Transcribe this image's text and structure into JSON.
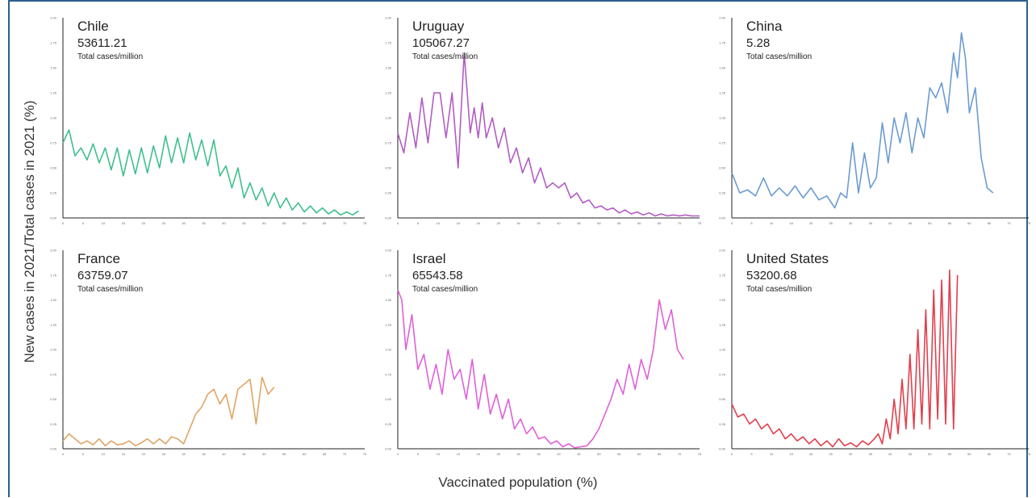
{
  "ylabel": "New cases in 2021/Total cases in 2021 (%)",
  "xlabel": "Vaccinated population (%)",
  "chart_data": [
    {
      "type": "line",
      "title": "Chile",
      "value": "53611.21",
      "unit": "Total cases/million",
      "color": "#3fbf8c",
      "xlim": [
        0,
        75
      ],
      "ylim": [
        0,
        2.0
      ],
      "yticks": [
        "0.00",
        "0.25",
        "0.50",
        "0.75",
        "1.00",
        "1.25",
        "1.50",
        "1.75",
        "2.00"
      ],
      "xticks": [
        "0",
        "5",
        "10",
        "15",
        "20",
        "25",
        "30",
        "35",
        "40",
        "45",
        "50",
        "55",
        "60",
        "65",
        "70",
        "75"
      ],
      "x": [
        0,
        1.5,
        3,
        4.5,
        6,
        7.5,
        9,
        10.5,
        12,
        13.5,
        15,
        16.5,
        18,
        19.5,
        21,
        22.5,
        24,
        25.5,
        27,
        28.5,
        30,
        31.5,
        33,
        34.5,
        36,
        37.5,
        39,
        40.5,
        42,
        43.5,
        45,
        46.5,
        48,
        49.5,
        51,
        52.5,
        54,
        55.5,
        57,
        58.5,
        60,
        61.5,
        63,
        64.5,
        66,
        67.5,
        69,
        70.5,
        72,
        73.5
      ],
      "y": [
        0.75,
        0.88,
        0.62,
        0.7,
        0.58,
        0.74,
        0.55,
        0.7,
        0.48,
        0.7,
        0.42,
        0.68,
        0.44,
        0.7,
        0.45,
        0.72,
        0.5,
        0.82,
        0.55,
        0.8,
        0.55,
        0.85,
        0.58,
        0.78,
        0.52,
        0.78,
        0.42,
        0.52,
        0.3,
        0.5,
        0.2,
        0.35,
        0.18,
        0.3,
        0.12,
        0.25,
        0.1,
        0.2,
        0.08,
        0.15,
        0.06,
        0.12,
        0.05,
        0.1,
        0.04,
        0.08,
        0.03,
        0.06,
        0.03,
        0.07
      ]
    },
    {
      "type": "line",
      "title": "Uruguay",
      "value": "105067.27",
      "unit": "Total cases/million",
      "color": "#b25cc4",
      "xlim": [
        0,
        75
      ],
      "ylim": [
        0,
        2.0
      ],
      "yticks": [
        "0.00",
        "0.25",
        "0.50",
        "0.75",
        "1.00",
        "1.25",
        "1.50",
        "1.75",
        "2.00"
      ],
      "xticks": [
        "0",
        "5",
        "10",
        "15",
        "20",
        "25",
        "30",
        "35",
        "40",
        "45",
        "50",
        "55",
        "60",
        "65",
        "70",
        "75"
      ],
      "x": [
        0,
        1.5,
        3,
        4.5,
        6,
        7.5,
        9,
        10.5,
        12,
        13.5,
        15,
        16.5,
        18,
        19,
        20,
        21,
        22,
        23.5,
        25,
        26.5,
        28,
        29.5,
        31,
        32.5,
        34,
        35.5,
        37,
        38.5,
        40,
        41.5,
        43,
        44.5,
        46,
        47.5,
        49,
        50.5,
        52,
        53.5,
        55,
        56.5,
        58,
        59.5,
        61,
        62.5,
        64,
        65.5,
        67,
        68.5,
        70,
        71.5,
        73,
        75
      ],
      "y": [
        0.85,
        0.65,
        1.05,
        0.7,
        1.2,
        0.75,
        1.25,
        1.25,
        0.8,
        1.25,
        0.5,
        1.65,
        0.85,
        1.1,
        0.8,
        1.15,
        0.8,
        1.0,
        0.7,
        0.9,
        0.55,
        0.7,
        0.45,
        0.6,
        0.35,
        0.5,
        0.3,
        0.35,
        0.3,
        0.35,
        0.2,
        0.25,
        0.15,
        0.18,
        0.1,
        0.12,
        0.08,
        0.1,
        0.05,
        0.08,
        0.04,
        0.06,
        0.03,
        0.05,
        0.02,
        0.04,
        0.02,
        0.03,
        0.02,
        0.03,
        0.02,
        0.02
      ]
    },
    {
      "type": "line",
      "title": "China",
      "value": "5.28",
      "unit": "Total cases/million",
      "color": "#6b9bd2",
      "xlim": [
        0,
        75
      ],
      "ylim": [
        0,
        2.0
      ],
      "yticks": [
        "0.00",
        "0.25",
        "0.50",
        "0.75",
        "1.00",
        "1.25",
        "1.50",
        "1.75",
        "2.00"
      ],
      "xticks": [
        "0",
        "5",
        "10",
        "15",
        "20",
        "25",
        "30",
        "35",
        "40",
        "45",
        "50",
        "55",
        "60",
        "65",
        "70",
        "75"
      ],
      "x": [
        0,
        2,
        4,
        6,
        8,
        10,
        12,
        14,
        16,
        18,
        20,
        22,
        24,
        26,
        27.5,
        29,
        30.5,
        32,
        33.5,
        35,
        36.5,
        38,
        39.5,
        41,
        42.5,
        44,
        45.5,
        47,
        48.5,
        50,
        51.5,
        53,
        54.5,
        56,
        57,
        58,
        59,
        60,
        61.5,
        63,
        64.5,
        66
      ],
      "y": [
        0.45,
        0.25,
        0.28,
        0.22,
        0.4,
        0.22,
        0.3,
        0.22,
        0.32,
        0.2,
        0.3,
        0.18,
        0.22,
        0.1,
        0.25,
        0.2,
        0.75,
        0.25,
        0.65,
        0.3,
        0.4,
        0.95,
        0.55,
        1.0,
        0.75,
        1.05,
        0.65,
        1.0,
        0.8,
        1.3,
        1.2,
        1.35,
        1.05,
        1.65,
        1.4,
        1.85,
        1.6,
        1.05,
        1.3,
        0.6,
        0.3,
        0.25
      ]
    },
    {
      "type": "line",
      "title": "France",
      "value": "63759.07",
      "unit": "Total cases/million",
      "color": "#e0a565",
      "xlim": [
        0,
        75
      ],
      "ylim": [
        0,
        2.0
      ],
      "yticks": [
        "0.00",
        "0.25",
        "0.50",
        "0.75",
        "1.00",
        "1.25",
        "1.50",
        "1.75",
        "2.00"
      ],
      "xticks": [
        "0",
        "5",
        "10",
        "15",
        "20",
        "25",
        "30",
        "35",
        "40",
        "45",
        "50",
        "55",
        "60",
        "65",
        "70",
        "75"
      ],
      "x": [
        0,
        1.5,
        3,
        4.5,
        6,
        7.5,
        9,
        10.5,
        12,
        13.5,
        15,
        16.5,
        18,
        19.5,
        21,
        22.5,
        24,
        25.5,
        27,
        28.5,
        30,
        31.5,
        33,
        34.5,
        36,
        37.5,
        39,
        40.5,
        42,
        43.5,
        45,
        46.5,
        48,
        49.5,
        51,
        52.5
      ],
      "y": [
        0.08,
        0.15,
        0.1,
        0.05,
        0.08,
        0.04,
        0.1,
        0.03,
        0.08,
        0.04,
        0.05,
        0.08,
        0.03,
        0.06,
        0.1,
        0.05,
        0.1,
        0.05,
        0.12,
        0.1,
        0.05,
        0.2,
        0.35,
        0.42,
        0.55,
        0.6,
        0.45,
        0.55,
        0.3,
        0.6,
        0.65,
        0.7,
        0.25,
        0.72,
        0.55,
        0.62
      ]
    },
    {
      "type": "line",
      "title": "Israel",
      "value": "65543.58",
      "unit": "Total cases/million",
      "color": "#e060d8",
      "xlim": [
        0,
        75
      ],
      "ylim": [
        0,
        2.0
      ],
      "yticks": [
        "0.00",
        "0.25",
        "0.50",
        "0.75",
        "1.00",
        "1.25",
        "1.50",
        "1.75",
        "2.00"
      ],
      "xticks": [
        "0",
        "5",
        "10",
        "15",
        "20",
        "25",
        "30",
        "35",
        "40",
        "45",
        "50",
        "55",
        "60",
        "65",
        "70",
        "75"
      ],
      "x": [
        0,
        1,
        2,
        3.5,
        5,
        6.5,
        8,
        9.5,
        11,
        12.5,
        14,
        15.5,
        17,
        18.5,
        20,
        21.5,
        23,
        24.5,
        26,
        27.5,
        29,
        30.5,
        32,
        33.5,
        35,
        36.5,
        38,
        39.5,
        41,
        42.5,
        44,
        45.5,
        47,
        48.5,
        50,
        51.5,
        53,
        54.5,
        56,
        57.5,
        59,
        60.5,
        62,
        63.5,
        65,
        66.5,
        68,
        69.5,
        71
      ],
      "y": [
        1.6,
        1.5,
        1.0,
        1.35,
        0.8,
        0.95,
        0.6,
        0.85,
        0.55,
        1.0,
        0.7,
        0.8,
        0.5,
        0.9,
        0.4,
        0.75,
        0.35,
        0.55,
        0.3,
        0.5,
        0.2,
        0.3,
        0.15,
        0.22,
        0.1,
        0.12,
        0.05,
        0.08,
        0.02,
        0.05,
        0.01,
        0.02,
        0.03,
        0.1,
        0.2,
        0.35,
        0.5,
        0.7,
        0.55,
        0.85,
        0.6,
        0.9,
        0.7,
        1.0,
        1.5,
        1.2,
        1.4,
        1.0,
        0.9
      ]
    },
    {
      "type": "line",
      "title": "United States",
      "value": "53200.68",
      "unit": "Total cases/million",
      "color": "#e0404d",
      "xlim": [
        0,
        75
      ],
      "ylim": [
        0,
        2.0
      ],
      "yticks": [
        "0.00",
        "0.25",
        "0.50",
        "0.75",
        "1.00",
        "1.25",
        "1.50",
        "1.75",
        "2.00"
      ],
      "xticks": [
        "0",
        "5",
        "10",
        "15",
        "20",
        "25",
        "30",
        "35",
        "40",
        "45",
        "50",
        "55",
        "60",
        "65",
        "70",
        "75"
      ],
      "x": [
        0,
        1.5,
        3,
        4.5,
        6,
        7.5,
        9,
        10.5,
        12,
        13.5,
        15,
        16.5,
        18,
        19.5,
        21,
        22.5,
        24,
        25.5,
        27,
        28.5,
        30,
        31.5,
        33,
        34.5,
        36,
        37,
        38,
        39,
        40,
        41,
        42,
        43,
        44,
        45,
        46,
        47,
        48,
        49,
        50,
        51,
        52,
        53,
        54,
        55,
        56,
        57
      ],
      "y": [
        0.45,
        0.32,
        0.35,
        0.25,
        0.3,
        0.2,
        0.25,
        0.15,
        0.2,
        0.1,
        0.15,
        0.08,
        0.12,
        0.05,
        0.1,
        0.03,
        0.08,
        0.02,
        0.1,
        0.03,
        0.06,
        0.02,
        0.08,
        0.04,
        0.1,
        0.15,
        0.05,
        0.3,
        0.1,
        0.5,
        0.15,
        0.7,
        0.2,
        0.95,
        0.2,
        1.2,
        0.25,
        1.4,
        0.2,
        1.6,
        0.3,
        1.7,
        0.25,
        1.8,
        0.2,
        1.75
      ]
    }
  ]
}
